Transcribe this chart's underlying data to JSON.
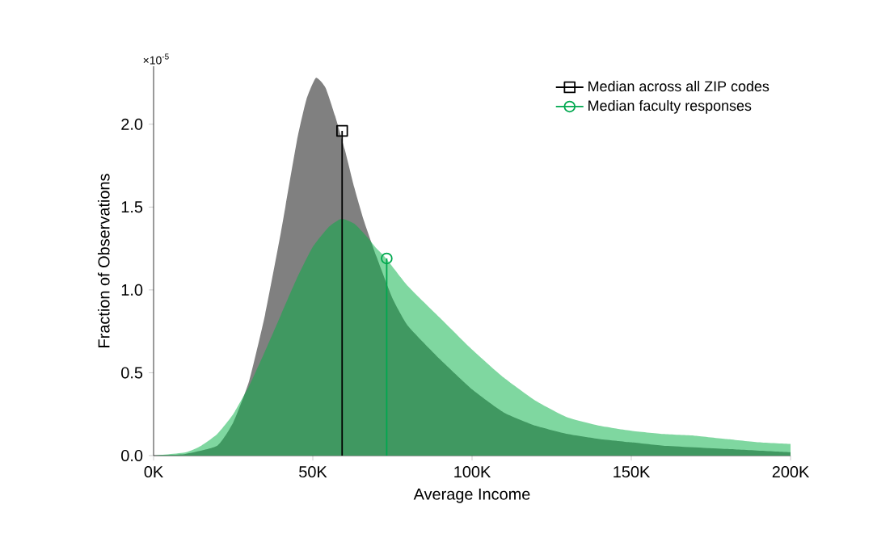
{
  "chart_data": {
    "type": "area",
    "xlabel": "Average Income",
    "ylabel": "Fraction of Observations",
    "annotations": [
      "×10$^{-5}$"
    ],
    "xlim": [
      0,
      200000
    ],
    "ylim": [
      0,
      2.35
    ],
    "xticks": [
      {
        "value": 0,
        "label": "0K"
      },
      {
        "value": 50000,
        "label": "50K"
      },
      {
        "value": 100000,
        "label": "100K"
      },
      {
        "value": 150000,
        "label": "150K"
      },
      {
        "value": 200000,
        "label": "200K"
      }
    ],
    "yticks": [
      {
        "value": 0,
        "label": "0.0"
      },
      {
        "value": 0.5,
        "label": "0.5"
      },
      {
        "value": 1,
        "label": "1.0"
      },
      {
        "value": 1.5,
        "label": "1.5"
      },
      {
        "value": 2,
        "label": "2.0"
      }
    ],
    "grid": false,
    "legend": "top right",
    "series": [
      {
        "type": "area",
        "color": "#808080",
        "x": [
          0,
          10000,
          20000,
          25000,
          30000,
          35000,
          40000,
          45000,
          48000,
          51000,
          54000,
          57000,
          60000,
          63000,
          66000,
          70000,
          75000,
          80000,
          90000,
          100000,
          110000,
          120000,
          130000,
          140000,
          150000,
          160000,
          180000,
          200000
        ],
        "values": [
          0,
          0.01,
          0.06,
          0.2,
          0.45,
          0.85,
          1.35,
          1.9,
          2.15,
          2.28,
          2.22,
          2.05,
          1.85,
          1.62,
          1.42,
          1.2,
          0.95,
          0.78,
          0.58,
          0.4,
          0.26,
          0.18,
          0.13,
          0.1,
          0.08,
          0.06,
          0.04,
          0.02
        ]
      },
      {
        "type": "area",
        "color": "#00af41",
        "x": [
          0,
          10000,
          15000,
          20000,
          25000,
          30000,
          35000,
          40000,
          45000,
          50000,
          55000,
          59000,
          63000,
          67000,
          70000,
          73000,
          80000,
          90000,
          100000,
          110000,
          120000,
          130000,
          140000,
          150000,
          160000,
          170000,
          180000,
          190000,
          200000
        ],
        "values": [
          0,
          0.02,
          0.06,
          0.13,
          0.25,
          0.42,
          0.63,
          0.85,
          1.07,
          1.26,
          1.38,
          1.43,
          1.4,
          1.32,
          1.25,
          1.19,
          1.02,
          0.83,
          0.64,
          0.47,
          0.33,
          0.23,
          0.18,
          0.15,
          0.13,
          0.12,
          0.1,
          0.08,
          0.07
        ]
      },
      {
        "type": "line",
        "name": "Median across all ZIP codes",
        "color": "#000000",
        "marker": "square",
        "x": [
          59200,
          59200
        ],
        "values": [
          0,
          1.96
        ]
      },
      {
        "type": "line",
        "name": "Median faculty responses",
        "color": "#00a84f",
        "marker": "circle",
        "x": [
          73200,
          73200
        ],
        "values": [
          0,
          1.19
        ]
      }
    ]
  }
}
